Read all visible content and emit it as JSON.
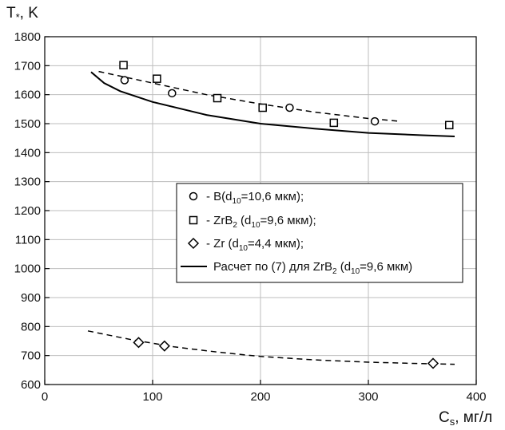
{
  "chart_data": {
    "type": "scatter",
    "title": "",
    "xlabel": {
      "main": "C",
      "sub": "s",
      "unit": ", мг/л"
    },
    "ylabel": {
      "main": "T",
      "sub": "*",
      "unit": ", K"
    },
    "xlim": [
      0,
      400
    ],
    "ylim": [
      600,
      1800
    ],
    "xticks": [
      0,
      100,
      200,
      300,
      400
    ],
    "yticks": [
      600,
      700,
      800,
      900,
      1000,
      1100,
      1200,
      1300,
      1400,
      1500,
      1600,
      1700,
      1800
    ],
    "grid": true,
    "legend_position": "center-right",
    "series": [
      {
        "id": "b",
        "marker": "circle",
        "legend": {
          "pre": " - B(d",
          "sub": "10",
          "post": "=10,6 мкм);"
        },
        "points": [
          [
            74,
            1650
          ],
          [
            118,
            1605
          ],
          [
            227,
            1555
          ],
          [
            306,
            1508
          ]
        ]
      },
      {
        "id": "zrb2",
        "marker": "square",
        "legend": {
          "pre": " - ZrB",
          "sub": "2",
          "mid": " (d",
          "sub2": "10",
          "post": "=9,6 мкм);"
        },
        "points": [
          [
            73,
            1702
          ],
          [
            104,
            1655
          ],
          [
            160,
            1588
          ],
          [
            202,
            1555
          ],
          [
            268,
            1503
          ],
          [
            375,
            1495
          ]
        ]
      },
      {
        "id": "zr",
        "marker": "diamond",
        "legend": {
          "pre": " - Zr (d",
          "sub": "10",
          "post": "=4,4 мкм);"
        },
        "points": [
          [
            87,
            745
          ],
          [
            111,
            733
          ],
          [
            360,
            673
          ]
        ]
      }
    ],
    "fit_lines": [
      {
        "style": "dashed",
        "points": [
          [
            50,
            1680
          ],
          [
            100,
            1640
          ],
          [
            150,
            1600
          ],
          [
            200,
            1568
          ],
          [
            250,
            1540
          ],
          [
            300,
            1518
          ],
          [
            330,
            1508
          ]
        ]
      },
      {
        "style": "dashed",
        "points": [
          [
            40,
            785
          ],
          [
            80,
            755
          ],
          [
            120,
            730
          ],
          [
            160,
            712
          ],
          [
            200,
            697
          ],
          [
            250,
            685
          ],
          [
            300,
            677
          ],
          [
            350,
            672
          ],
          [
            380,
            670
          ]
        ]
      }
    ],
    "model_line": {
      "style": "solid",
      "legend": {
        "pre": "Расчет по (7) для ZrB",
        "sub": "2",
        "mid": " (d",
        "sub2": "10",
        "post": "=9,6 мкм)"
      },
      "points": [
        [
          43,
          1678
        ],
        [
          55,
          1640
        ],
        [
          70,
          1612
        ],
        [
          100,
          1575
        ],
        [
          150,
          1530
        ],
        [
          200,
          1500
        ],
        [
          250,
          1483
        ],
        [
          300,
          1468
        ],
        [
          350,
          1460
        ],
        [
          380,
          1456
        ]
      ]
    }
  }
}
